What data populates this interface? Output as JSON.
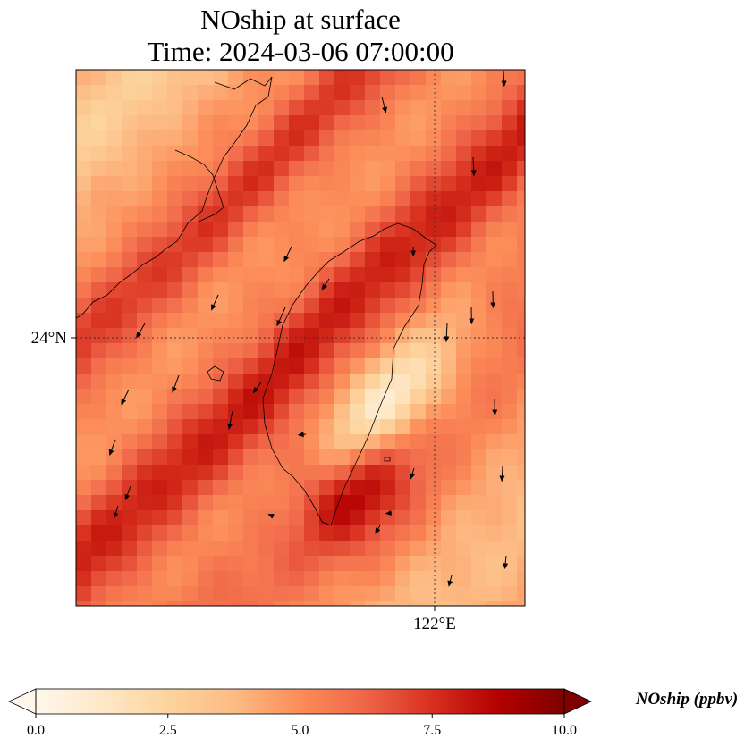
{
  "chart_data": {
    "type": "heatmap",
    "title": [
      "NOship at surface",
      "Time: 2024-03-06 07:00:00"
    ],
    "variable": "NOship",
    "units": "ppbv",
    "colorbar": {
      "label": "NOship (ppbv)",
      "vmin": 0.0,
      "vmax": 10.0,
      "ticks": [
        "0.0",
        "2.5",
        "5.0",
        "7.5",
        "10.0"
      ],
      "extend": "both",
      "colormap": [
        "#fff7ec",
        "#fee8c8",
        "#fdd49e",
        "#fdbb84",
        "#fc8d59",
        "#ef6548",
        "#d7301f",
        "#b30000",
        "#7f0000"
      ],
      "orientation": "horizontal"
    },
    "map": {
      "gridline_labels": {
        "lat": "24°N",
        "lon": "122°E"
      },
      "gridlines": "dotted",
      "extent_lon": [
        119.0,
        122.7
      ],
      "extent_lat": [
        21.8,
        26.2
      ],
      "features": [
        "coastlines",
        "wind vectors"
      ],
      "region": "Taiwan Strait and Taiwan"
    }
  }
}
